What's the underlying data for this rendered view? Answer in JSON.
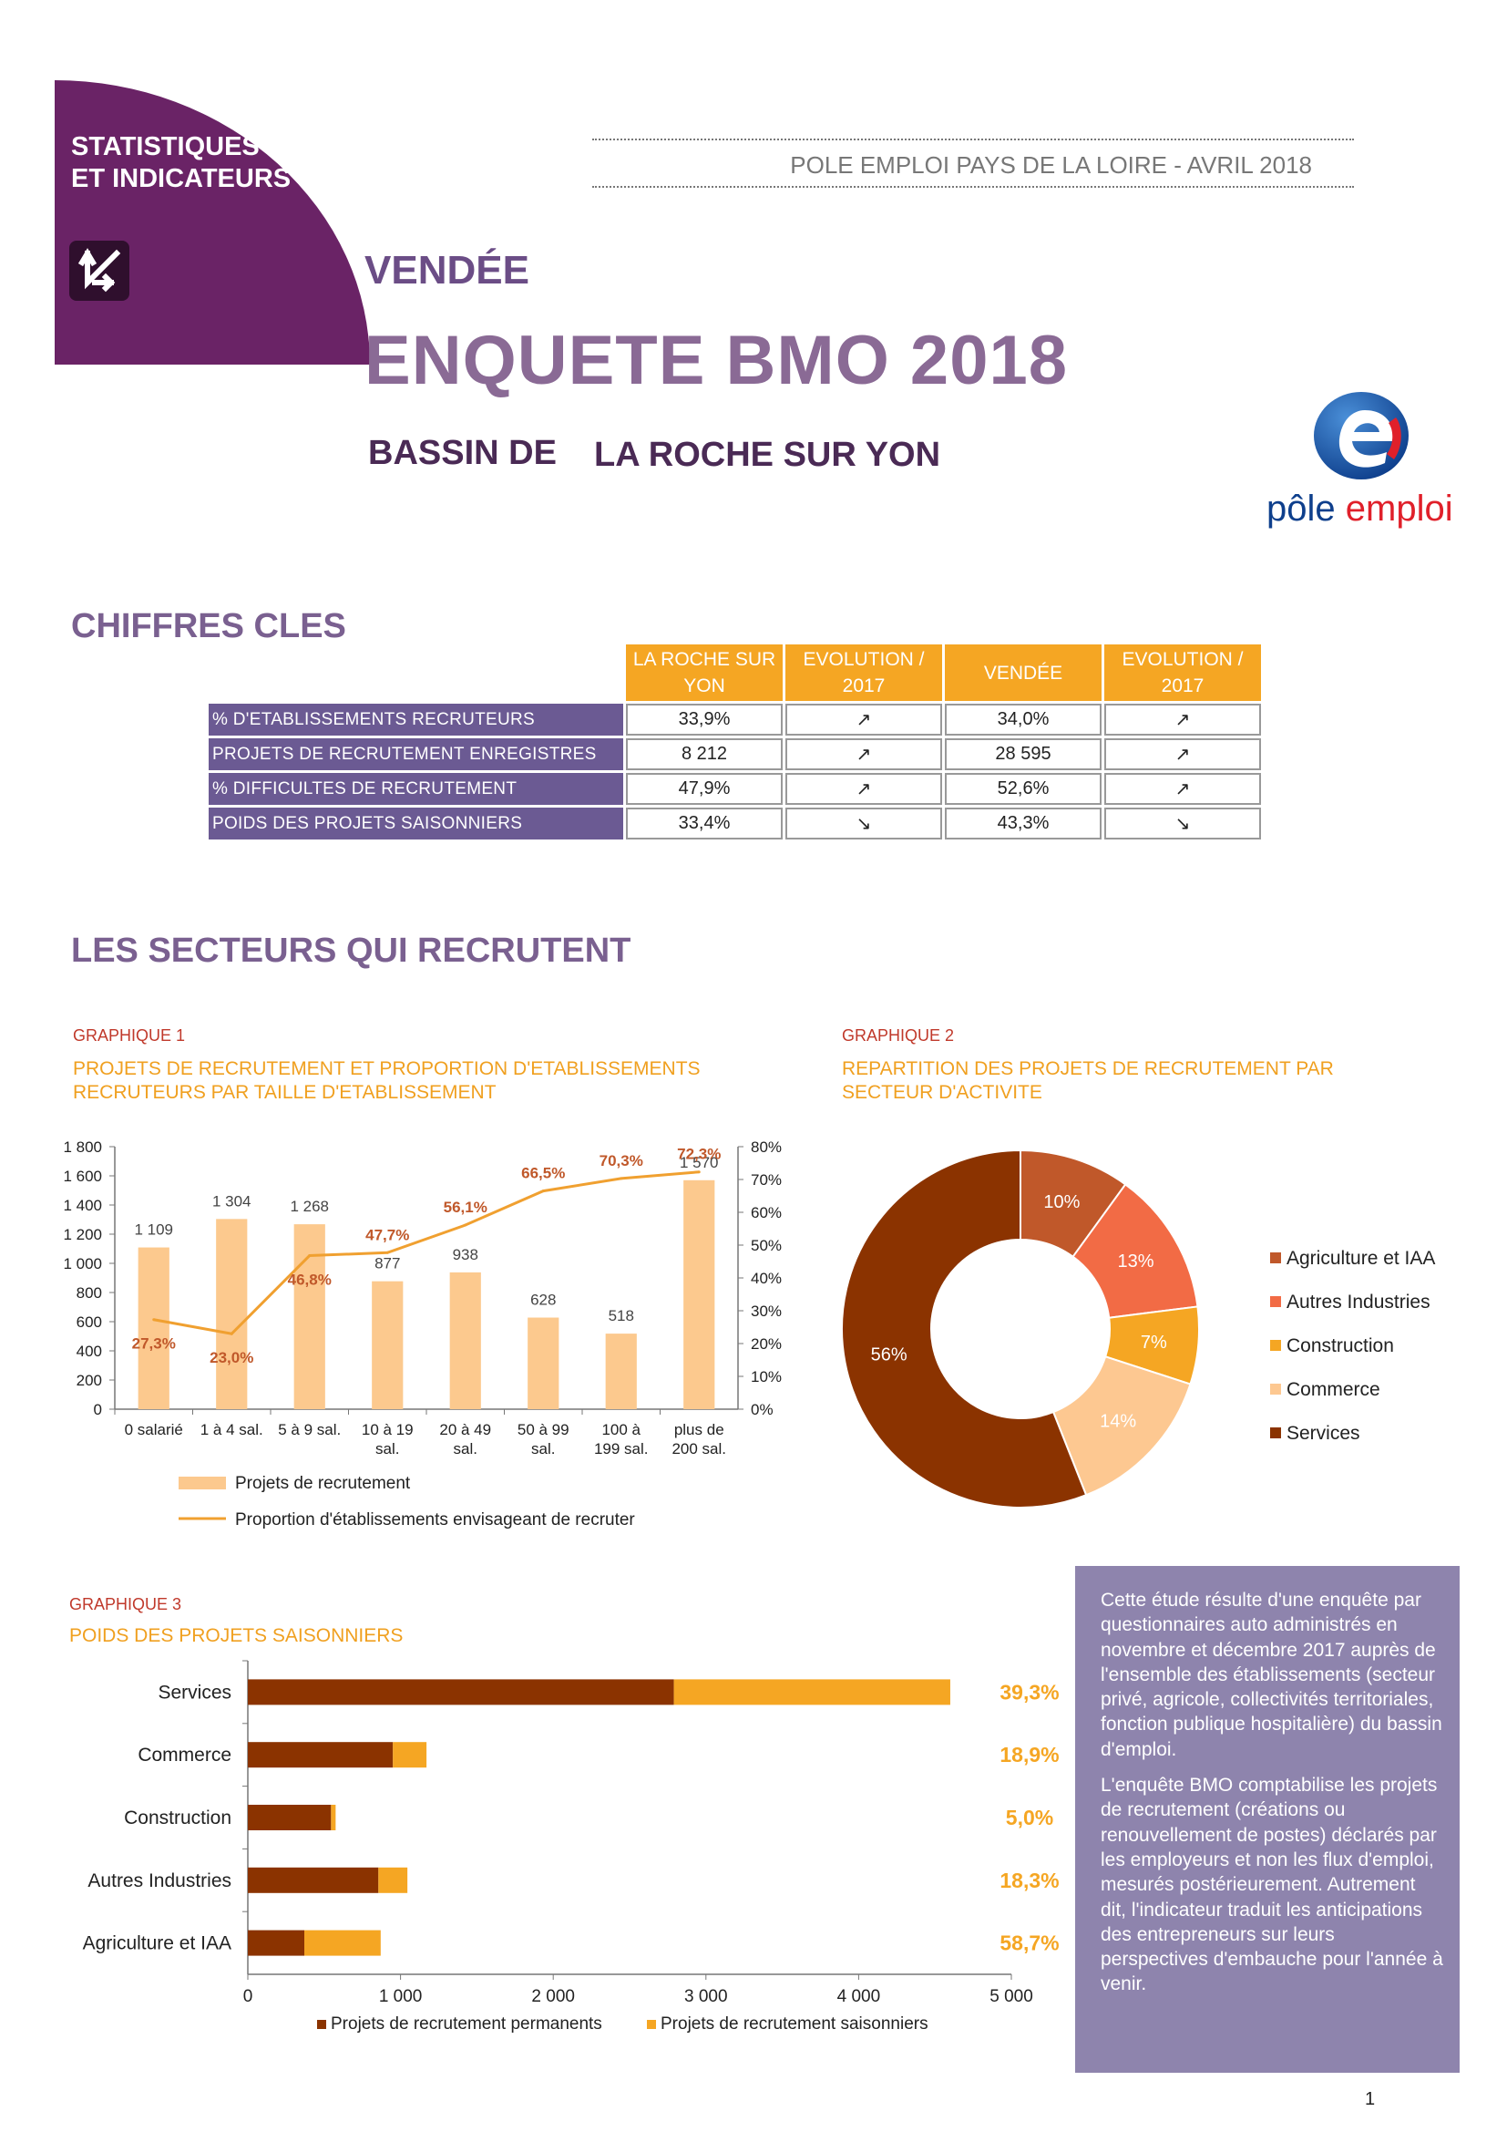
{
  "header": {
    "brand_line1": "STATISTIQUES",
    "brand_line2": "ET INDICATEURS",
    "publisher": "POLE EMPLOI PAYS DE LA LOIRE - AVRIL 2018",
    "region": "VENDÉE",
    "title": "ENQUETE BMO 2018",
    "basin_prefix": "BASSIN DE",
    "basin_name": "LA ROCHE SUR YON",
    "logo_text_1": "pôle",
    "logo_text_2": "emploi",
    "colors": {
      "brand_purple": "#6a2366",
      "accent_orange": "#f5a623",
      "label_purple": "#6b5a93"
    }
  },
  "key_figures": {
    "title": "CHIFFRES CLES",
    "headers": [
      "LA ROCHE SUR YON",
      "EVOLUTION / 2017",
      "VENDÉE",
      "EVOLUTION / 2017"
    ],
    "rows": [
      {
        "label": "% D'ETABLISSEMENTS RECRUTEURS",
        "local": "33,9%",
        "local_trend": "↗",
        "dept": "34,0%",
        "dept_trend": "↗"
      },
      {
        "label": "PROJETS DE RECRUTEMENT ENREGISTRES",
        "local": "8 212",
        "local_trend": "↗",
        "dept": "28 595",
        "dept_trend": "↗"
      },
      {
        "label": "% DIFFICULTES DE RECRUTEMENT",
        "local": "47,9%",
        "local_trend": "↗",
        "dept": "52,6%",
        "dept_trend": "↗"
      },
      {
        "label": "POIDS DES PROJETS SAISONNIERS",
        "local": "33,4%",
        "local_trend": "↘",
        "dept": "43,3%",
        "dept_trend": "↘"
      }
    ]
  },
  "sectors_title": "LES SECTEURS QUI RECRUTENT",
  "graph1": {
    "label": "GRAPHIQUE 1",
    "title_line1": "PROJETS DE RECRUTEMENT ET PROPORTION D'ETABLISSEMENTS",
    "title_line2": "RECRUTEURS PAR TAILLE D'ETABLISSEMENT",
    "chart_data": {
      "type": "bar",
      "categories": [
        [
          "0 salarié"
        ],
        [
          "1 à 4 sal."
        ],
        [
          "5 à 9 sal."
        ],
        [
          "10 à 19",
          "sal."
        ],
        [
          "20 à 49",
          "sal."
        ],
        [
          "50 à 99",
          "sal."
        ],
        [
          "100 à",
          "199 sal."
        ],
        [
          "plus de",
          "200 sal."
        ]
      ],
      "series": [
        {
          "name": "Projets de recrutement",
          "type": "bar",
          "values": [
            1109,
            1304,
            1268,
            877,
            938,
            628,
            518,
            1570
          ],
          "labels": [
            "1 109",
            "1 304",
            "1 268",
            "877",
            "938",
            "628",
            "518",
            "1 570"
          ],
          "color": "#fcc98e"
        },
        {
          "name": "Proportion d'établissements envisageant de recruter",
          "type": "line",
          "values": [
            27.3,
            23.0,
            46.8,
            47.7,
            56.1,
            66.5,
            70.3,
            72.3
          ],
          "labels": [
            "27,3%",
            "23,0%",
            "46,8%",
            "47,7%",
            "56,1%",
            "66,5%",
            "70,3%",
            "72,3%"
          ],
          "color": "#f0a030"
        }
      ],
      "y_left": {
        "min": 0,
        "max": 1800,
        "ticks": [
          "0",
          "200",
          "400",
          "600",
          "800",
          "1 000",
          "1 200",
          "1 400",
          "1 600",
          "1 800"
        ]
      },
      "y_right": {
        "min": 0,
        "max": 80,
        "ticks": [
          "0%",
          "10%",
          "20%",
          "30%",
          "40%",
          "50%",
          "60%",
          "70%",
          "80%"
        ]
      },
      "legend": [
        "Projets de recrutement",
        "Proportion d'établissements envisageant de recruter"
      ]
    }
  },
  "graph2": {
    "label": "GRAPHIQUE 2",
    "title_line1": "REPARTITION DES PROJETS DE RECRUTEMENT PAR",
    "title_line2": "SECTEUR D'ACTIVITE",
    "chart_data": {
      "type": "pie",
      "categories": [
        "Agriculture et IAA",
        "Autres Industries",
        "Construction",
        "Commerce",
        "Services"
      ],
      "values": [
        10,
        13,
        7,
        14,
        56
      ],
      "labels": [
        "10%",
        "13%",
        "7%",
        "14%",
        "56%"
      ],
      "colors": [
        "#c0582a",
        "#f26b45",
        "#f5a623",
        "#fdc891",
        "#8b3300"
      ]
    }
  },
  "graph3": {
    "label": "GRAPHIQUE 3",
    "title": "POIDS DES PROJETS SAISONNIERS",
    "chart_data": {
      "type": "bar",
      "orientation": "horizontal",
      "stacked": true,
      "categories": [
        "Services",
        "Commerce",
        "Construction",
        "Autres Industries",
        "Agriculture et IAA"
      ],
      "series": [
        {
          "name": "Projets de recrutement permanents",
          "values": [
            2790,
            950,
            545,
            855,
            370
          ],
          "color": "#8b3300"
        },
        {
          "name": "Projets de recrutement saisonniers",
          "values": [
            1810,
            220,
            30,
            190,
            500
          ],
          "color": "#f5a623"
        }
      ],
      "share_labels": [
        "39,3%",
        "18,9%",
        "5,0%",
        "18,3%",
        "58,7%"
      ],
      "x_axis": {
        "min": 0,
        "max": 5000,
        "ticks": [
          "0",
          "1 000",
          "2 000",
          "3 000",
          "4 000",
          "5 000"
        ]
      },
      "legend": [
        "Projets de recrutement permanents",
        "Projets de recrutement saisonniers"
      ]
    }
  },
  "sidebox": {
    "paragraph1": "Cette étude résulte d'une enquête par questionnaires auto administrés en novembre et décembre 2017 auprès de l'ensemble des établissements (secteur privé, agricole, collectivités territoriales, fonction publique hospitalière) du bassin d'emploi.",
    "paragraph2": "L'enquête BMO comptabilise les projets de recrutement (créations ou renouvellement de postes) déclarés par les employeurs et non les flux d'emploi, mesurés postérieurement. Autrement dit, l'indicateur traduit les anticipations des entrepreneurs sur leurs perspectives d'embauche pour l'année à venir."
  },
  "page_number": "1"
}
